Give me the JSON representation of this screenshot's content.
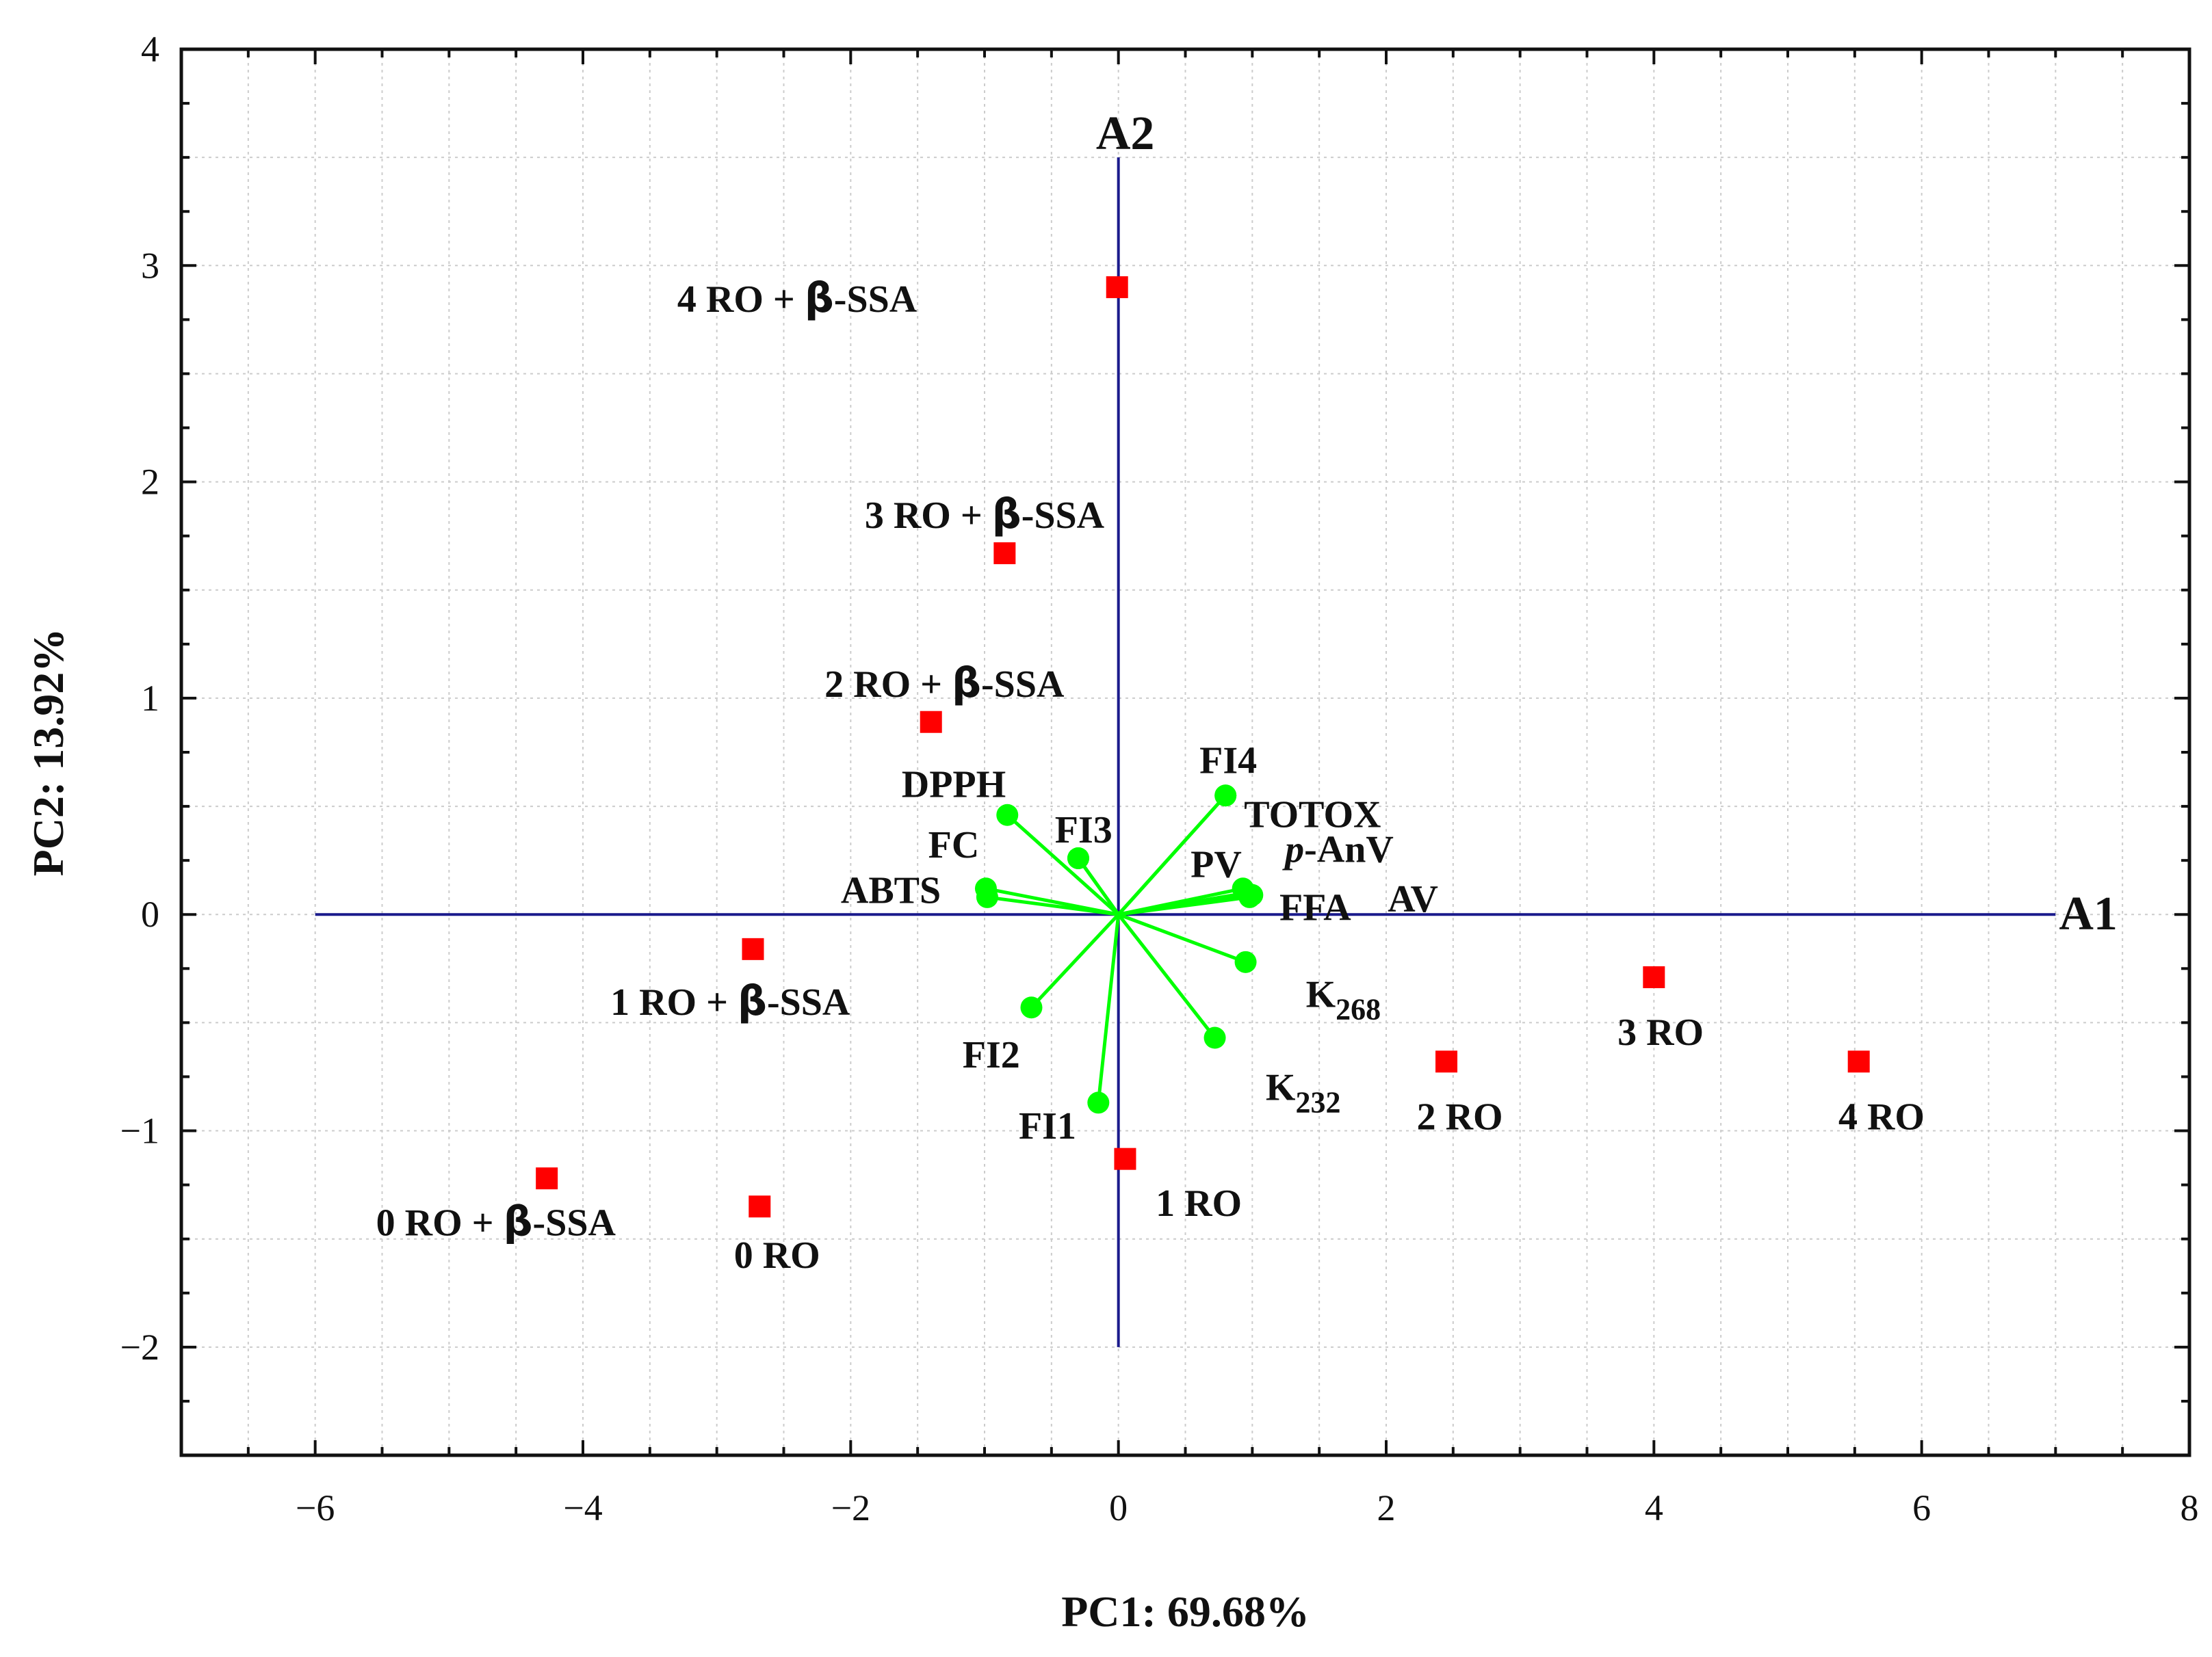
{
  "chart_data": {
    "type": "scatter",
    "subtype": "pca-biplot",
    "title": "",
    "xlabel": "PC1: 69.68%",
    "ylabel": "PC2: 13.92%",
    "xlim": [
      -7,
      8
    ],
    "ylim": [
      -2.5,
      4
    ],
    "x_ticks": [
      -6,
      -4,
      -2,
      0,
      2,
      4,
      6,
      8
    ],
    "x_tick_labels": [
      "−6",
      "−4",
      "−2",
      "0",
      "2",
      "4",
      "6",
      "8"
    ],
    "y_ticks": [
      -2,
      -1,
      0,
      1,
      2,
      3,
      4
    ],
    "y_tick_labels": [
      "−2",
      "−1",
      "0",
      "1",
      "2",
      "3",
      "4"
    ],
    "grid": true,
    "reference_axes": {
      "a1": {
        "label": "A1",
        "x_from": -6,
        "x_to": 7,
        "y": 0
      },
      "a2": {
        "label": "A2",
        "y_from": -2,
        "y_to": 3.5,
        "x": 0
      }
    },
    "observations": {
      "name": "Samples",
      "color": "#ff0000",
      "points": [
        {
          "label": "0 RO + β-SSA",
          "pre": "0 RO + ",
          "greek": "β",
          "post": "-SSA",
          "x": -4.27,
          "y": -1.22,
          "lx": -4.65,
          "ly": -1.42,
          "anchor": "middle"
        },
        {
          "label": "0 RO",
          "x": -2.68,
          "y": -1.35,
          "lx": -2.55,
          "ly": -1.57,
          "anchor": "middle"
        },
        {
          "label": "1 RO + β-SSA",
          "pre": "1 RO + ",
          "greek": "β",
          "post": "-SSA",
          "x": -2.73,
          "y": -0.16,
          "lx": -2.9,
          "ly": -0.4,
          "anchor": "middle"
        },
        {
          "label": "2 RO + β-SSA",
          "pre": "2 RO + ",
          "greek": "β",
          "post": "-SSA",
          "x": -1.4,
          "y": 0.89,
          "lx": -1.3,
          "ly": 1.07,
          "anchor": "middle"
        },
        {
          "label": "3 RO + β-SSA",
          "pre": "3 RO + ",
          "greek": "β",
          "post": "-SSA",
          "x": -0.85,
          "y": 1.67,
          "lx": -1.0,
          "ly": 1.85,
          "anchor": "middle"
        },
        {
          "label": "4 RO + β-SSA",
          "pre": "4 RO + ",
          "greek": "β",
          "post": "-SSA",
          "x": -0.01,
          "y": 2.9,
          "lx": -2.4,
          "ly": 2.85,
          "anchor": "middle"
        },
        {
          "label": "1 RO",
          "x": 0.05,
          "y": -1.13,
          "lx": 0.6,
          "ly": -1.33,
          "anchor": "middle"
        },
        {
          "label": "2 RO",
          "x": 2.45,
          "y": -0.68,
          "lx": 2.55,
          "ly": -0.93,
          "anchor": "middle"
        },
        {
          "label": "3 RO",
          "x": 4.0,
          "y": -0.29,
          "lx": 4.05,
          "ly": -0.54,
          "anchor": "middle"
        },
        {
          "label": "4 RO",
          "x": 5.53,
          "y": -0.68,
          "lx": 5.7,
          "ly": -0.93,
          "anchor": "middle"
        }
      ]
    },
    "variables": {
      "name": "Loadings",
      "color": "#00ff00",
      "points": [
        {
          "label": "DPPH",
          "x": -0.83,
          "y": 0.46,
          "lx": -1.23,
          "ly": 0.6,
          "anchor": "middle"
        },
        {
          "label": "FC",
          "x": -0.3,
          "y": 0.26,
          "lx": -1.23,
          "ly": 0.32,
          "anchor": "middle"
        },
        {
          "label": "FI3",
          "x": -0.3,
          "y": 0.26,
          "lx": -0.26,
          "ly": 0.39,
          "anchor": "middle"
        },
        {
          "label": "ABTS",
          "x": -0.99,
          "y": 0.12,
          "lx": -1.7,
          "ly": 0.11,
          "anchor": "middle"
        },
        {
          "label": "",
          "x": -0.98,
          "y": 0.08
        },
        {
          "label": "FI2",
          "x": -0.65,
          "y": -0.43,
          "lx": -0.95,
          "ly": -0.65,
          "anchor": "middle"
        },
        {
          "label": "FI1",
          "x": -0.15,
          "y": -0.87,
          "lx": -0.53,
          "ly": -0.98,
          "anchor": "middle"
        },
        {
          "label": "FI4",
          "x": 0.8,
          "y": 0.55,
          "lx": 0.82,
          "ly": 0.71,
          "anchor": "middle"
        },
        {
          "label": "TOTOX",
          "x": 0.8,
          "y": 0.55,
          "lx": 1.45,
          "ly": 0.46,
          "anchor": "middle"
        },
        {
          "label": "PV",
          "x": 0.93,
          "y": 0.12,
          "lx": 0.73,
          "ly": 0.23,
          "anchor": "middle"
        },
        {
          "label": "p-AnV",
          "x": 0.96,
          "y": 0.1,
          "lx": 1.65,
          "ly": 0.3,
          "anchor": "middle",
          "italic_prefix": "p",
          "rest": "-AnV"
        },
        {
          "label": "FFA",
          "x": 0.98,
          "y": 0.08,
          "lx": 1.47,
          "ly": 0.03,
          "anchor": "middle"
        },
        {
          "label": "AV",
          "x": 1.0,
          "y": 0.09,
          "lx": 2.2,
          "ly": 0.07,
          "anchor": "middle"
        },
        {
          "label": "K268",
          "x": 0.95,
          "y": -0.22,
          "lx": 1.4,
          "ly": -0.37,
          "anchor": "start",
          "main": "K",
          "sub": "268"
        },
        {
          "label": "K232",
          "x": 0.72,
          "y": -0.57,
          "lx": 1.1,
          "ly": -0.8,
          "anchor": "start",
          "main": "K",
          "sub": "232"
        }
      ]
    }
  }
}
